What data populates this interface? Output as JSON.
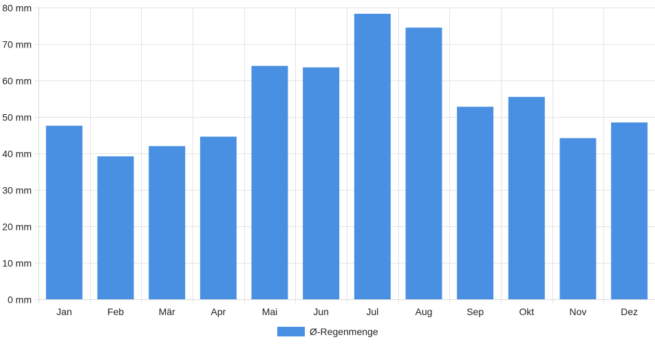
{
  "chart_data": {
    "type": "bar",
    "categories": [
      "Jan",
      "Feb",
      "Mär",
      "Apr",
      "Mai",
      "Jun",
      "Jul",
      "Aug",
      "Sep",
      "Okt",
      "Nov",
      "Dez"
    ],
    "series": [
      {
        "name": "Ø-Regenmenge",
        "values": [
          47.6,
          39.2,
          42.0,
          44.6,
          64.0,
          63.6,
          78.3,
          74.5,
          52.8,
          55.5,
          44.2,
          48.5
        ],
        "color": "#4a90e2"
      }
    ],
    "y_unit": "mm",
    "ylim": [
      0,
      80
    ],
    "y_ticks": [
      0,
      10,
      20,
      30,
      40,
      50,
      60,
      70,
      80
    ],
    "y_tick_labels": [
      "0 mm",
      "10 mm",
      "20 mm",
      "30 mm",
      "40 mm",
      "50 mm",
      "60 mm",
      "70 mm",
      "80 mm"
    ],
    "grid": true,
    "legend_position": "bottom-center"
  }
}
